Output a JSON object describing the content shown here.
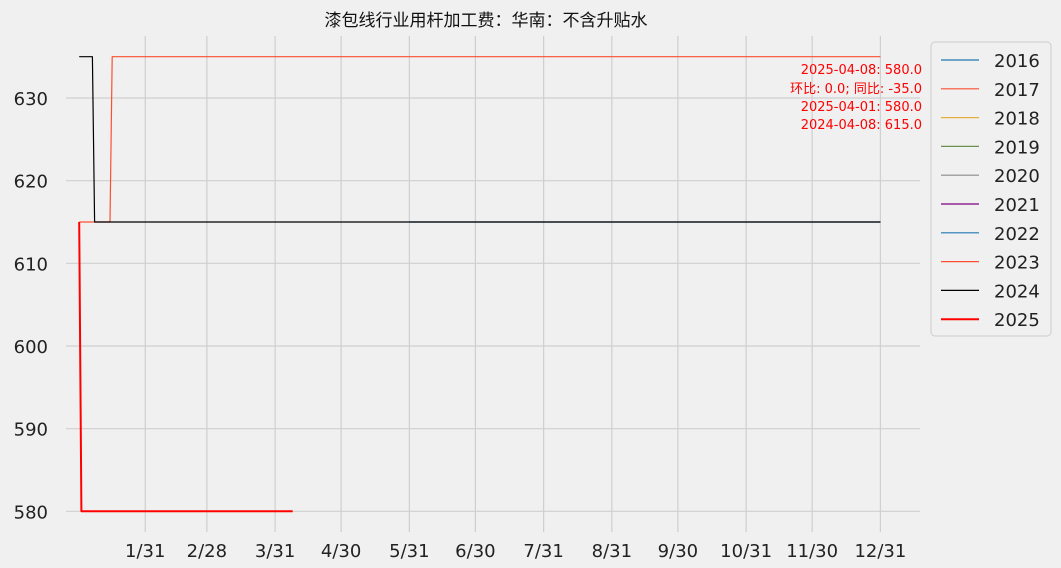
{
  "chart_data": {
    "type": "line",
    "title": "漆包线行业用杆加工费：华南：不含升贴水",
    "xlabel": "",
    "ylabel": "",
    "x_tick_labels": [
      "1/31",
      "2/28",
      "3/31",
      "4/30",
      "5/31",
      "6/30",
      "7/31",
      "8/31",
      "9/30",
      "10/31",
      "11/30",
      "12/31"
    ],
    "x_tick_days": [
      31,
      59,
      90,
      120,
      151,
      181,
      212,
      243,
      273,
      304,
      334,
      365
    ],
    "xlim_days": [
      -5,
      383
    ],
    "y_ticks": [
      580,
      590,
      600,
      610,
      620,
      630
    ],
    "ylim": [
      577.5,
      637.5
    ],
    "grid": true,
    "legend_position": "outside-right",
    "annotation": [
      "2025-04-08: 580.0",
      "环比: 0.0; 同比: -35.0",
      "2025-04-01: 580.0",
      "2024-04-08: 615.0"
    ],
    "series": [
      {
        "name": "2016",
        "color": "#1f77b4",
        "width": 1.2,
        "points": []
      },
      {
        "name": "2017",
        "color": "#fc4f30",
        "width": 1.2,
        "points": []
      },
      {
        "name": "2018",
        "color": "#e5ae38",
        "width": 1.2,
        "points": []
      },
      {
        "name": "2019",
        "color": "#6d904f",
        "width": 1.2,
        "points": []
      },
      {
        "name": "2020",
        "color": "#8b8b8b",
        "width": 1.2,
        "points": []
      },
      {
        "name": "2021",
        "color": "#800080",
        "width": 1.2,
        "points": []
      },
      {
        "name": "2022",
        "color": "#1f77b4",
        "width": 1.2,
        "points": [
          [
            151,
            615
          ],
          [
            365,
            615
          ]
        ]
      },
      {
        "name": "2023",
        "color": "#fc4f30",
        "width": 1.2,
        "points": [
          [
            1,
            615
          ],
          [
            15,
            615
          ],
          [
            16,
            635
          ],
          [
            365,
            635
          ]
        ]
      },
      {
        "name": "2024",
        "color": "#000000",
        "width": 1.2,
        "points": [
          [
            1,
            635
          ],
          [
            7,
            635
          ],
          [
            8,
            615
          ],
          [
            365,
            615
          ]
        ]
      },
      {
        "name": "2025",
        "color": "#ff0000",
        "width": 2,
        "points": [
          [
            1,
            615
          ],
          [
            2,
            580
          ],
          [
            98,
            580
          ]
        ]
      }
    ]
  }
}
